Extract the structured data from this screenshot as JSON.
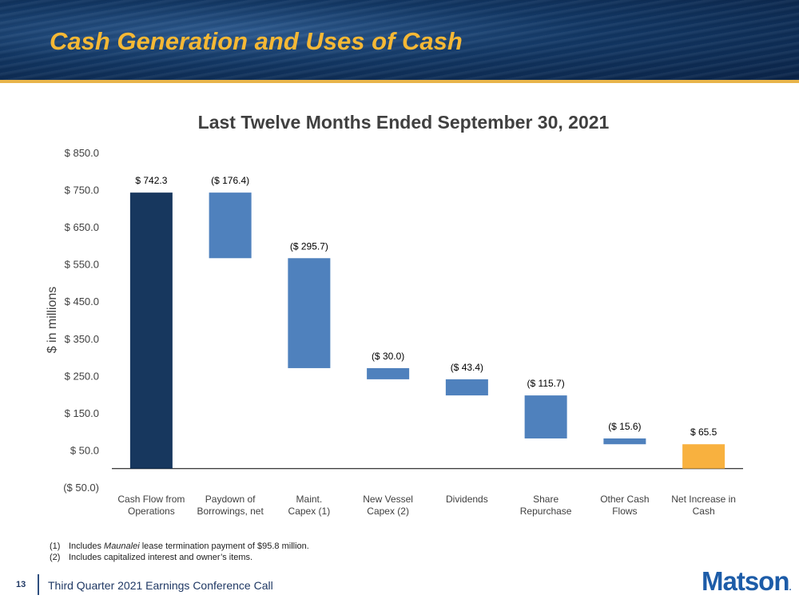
{
  "slide": {
    "title": "Cash Generation and Uses of Cash",
    "page_number": "13",
    "footer": "Third Quarter 2021 Earnings Conference Call",
    "logo": "Matson",
    "logo_mark": "."
  },
  "footnotes": [
    {
      "num": "(1)",
      "pre": "Includes ",
      "em": "Maunalei",
      "post": " lease termination payment of $95.8 million."
    },
    {
      "num": "(2)",
      "pre": "Includes capitalized interest and owner’s items.",
      "em": "",
      "post": ""
    }
  ],
  "colors": {
    "total": "#17375e",
    "decrease": "#4f81bd",
    "net": "#f8b13f"
  },
  "chart_data": {
    "type": "bar",
    "subtype": "waterfall",
    "title": "Last Twelve Months Ended September 30, 2021",
    "ylabel": "$ in millions",
    "ylim": [
      -50,
      850
    ],
    "yticks": [
      850,
      750,
      650,
      550,
      450,
      350,
      250,
      150,
      50,
      -50
    ],
    "ytick_labels": [
      "$ 850.0",
      "$ 750.0",
      "$ 650.0",
      "$ 550.0",
      "$ 450.0",
      "$ 350.0",
      "$ 250.0",
      "$ 150.0",
      "$ 50.0",
      "($ 50.0)"
    ],
    "grid": false,
    "categories": [
      [
        "Cash Flow from",
        "Operations"
      ],
      [
        "Paydown of",
        "Borrowings, net"
      ],
      [
        "Maint.",
        "Capex (1)"
      ],
      [
        "New Vessel",
        "Capex (2)"
      ],
      [
        "Dividends"
      ],
      [
        "Share",
        "Repurchase"
      ],
      [
        "Other Cash",
        "Flows"
      ],
      [
        "Net Increase in",
        "Cash"
      ]
    ],
    "values": [
      742.3,
      -176.4,
      -295.7,
      -30.0,
      -43.4,
      -115.7,
      -15.6,
      65.5
    ],
    "kinds": [
      "total",
      "decrease",
      "decrease",
      "decrease",
      "decrease",
      "decrease",
      "decrease",
      "net"
    ],
    "data_labels": [
      "$ 742.3",
      "($ 176.4)",
      "($ 295.7)",
      "($ 30.0)",
      "($ 43.4)",
      "($ 115.7)",
      "($ 15.6)",
      "$ 65.5"
    ]
  }
}
